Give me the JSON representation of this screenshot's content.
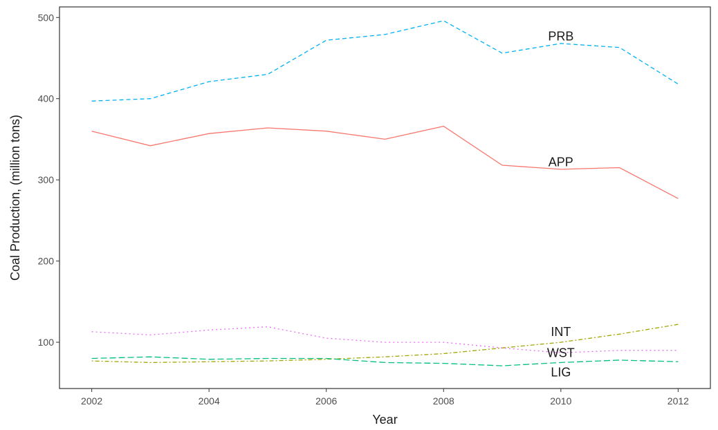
{
  "chart_data": {
    "type": "line",
    "title": "",
    "xlabel": "Year",
    "ylabel": "Coal Production, (million tons)",
    "xlim": [
      2001.45,
      2012.55
    ],
    "ylim": [
      43,
      513
    ],
    "x_ticks": [
      2002,
      2004,
      2006,
      2008,
      2010,
      2012
    ],
    "y_ticks": [
      100,
      200,
      300,
      400,
      500
    ],
    "grid": false,
    "legend": "none",
    "x": [
      2002,
      2003,
      2004,
      2005,
      2006,
      2007,
      2008,
      2009,
      2010,
      2011,
      2012
    ],
    "series": [
      {
        "name": "PRB",
        "color": "#00b0f6",
        "dash": "dashed",
        "values": [
          397,
          400,
          421,
          430,
          472,
          479,
          496,
          456,
          468,
          463,
          418
        ],
        "label_at": [
          2010,
          477
        ]
      },
      {
        "name": "APP",
        "color": "#f8766d",
        "dash": "solid",
        "values": [
          360,
          342,
          357,
          364,
          360,
          350,
          366,
          318,
          313,
          315,
          277
        ],
        "label_at": [
          2010,
          322
        ]
      },
      {
        "name": "INT",
        "color": "#a3a500",
        "dash": "dotdash",
        "values": [
          77,
          75,
          76,
          77,
          79,
          82,
          86,
          93,
          100,
          110,
          122
        ],
        "label_at": [
          2010,
          113
        ]
      },
      {
        "name": "WST",
        "color": "#e76bf3",
        "dash": "dotted",
        "values": [
          113,
          109,
          115,
          119,
          105,
          100,
          100,
          93,
          87,
          90,
          90
        ],
        "label_at": [
          2010,
          87
        ]
      },
      {
        "name": "LIG",
        "color": "#00bf7d",
        "dash": "longdash",
        "values": [
          80,
          82,
          79,
          80,
          80,
          75,
          74,
          71,
          75,
          78,
          76
        ],
        "label_at": [
          2010,
          63
        ]
      }
    ]
  }
}
